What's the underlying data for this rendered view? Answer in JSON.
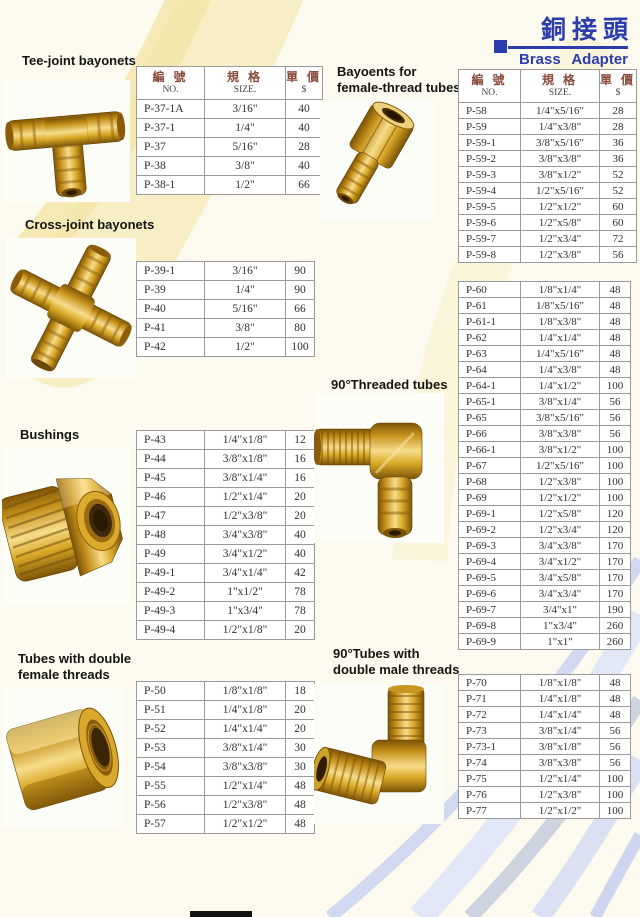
{
  "brand": {
    "title_zh": "銅接頭",
    "title_en": "Brass Adapter"
  },
  "table_header": {
    "no_zh": "編 號",
    "no_en": "NO.",
    "size_zh": "規  格",
    "size_en": "SIZE.",
    "price_zh": "單 價",
    "price_en": "$"
  },
  "colors": {
    "accent_blue": "#2b3dad",
    "table_header_red": "#8a4a3a",
    "brass": "#d9a827",
    "page_cream": "#fcfaee"
  },
  "sections": [
    {
      "name": "tee-joint-bayonets",
      "title_lines": [
        "Tee-joint bayonets"
      ],
      "show_header": true,
      "rows": [
        [
          "P-37-1A",
          "3/16\"",
          "40"
        ],
        [
          "P-37-1",
          "1/4\"",
          "40"
        ],
        [
          "P-37",
          "5/16\"",
          "28"
        ],
        [
          "P-38",
          "3/8\"",
          "40"
        ],
        [
          "P-38-1",
          "1/2\"",
          "66"
        ]
      ]
    },
    {
      "name": "cross-joint-bayonets",
      "title_lines": [
        "Cross-joint bayonets"
      ],
      "show_header": false,
      "rows": [
        [
          "P-39-1",
          "3/16\"",
          "90"
        ],
        [
          "P-39",
          "1/4\"",
          "90"
        ],
        [
          "P-40",
          "5/16\"",
          "66"
        ],
        [
          "P-41",
          "3/8\"",
          "80"
        ],
        [
          "P-42",
          "1/2\"",
          "100"
        ]
      ]
    },
    {
      "name": "bushings",
      "title_lines": [
        "Bushings"
      ],
      "show_header": false,
      "rows": [
        [
          "P-43",
          "1/4\"x1/8\"",
          "12"
        ],
        [
          "P-44",
          "3/8\"x1/8\"",
          "16"
        ],
        [
          "P-45",
          "3/8\"x1/4\"",
          "16"
        ],
        [
          "P-46",
          "1/2\"x1/4\"",
          "20"
        ],
        [
          "P-47",
          "1/2\"x3/8\"",
          "20"
        ],
        [
          "P-48",
          "3/4\"x3/8\"",
          "40"
        ],
        [
          "P-49",
          "3/4\"x1/2\"",
          "40"
        ],
        [
          "P-49-1",
          "3/4\"x1/4\"",
          "42"
        ],
        [
          "P-49-2",
          "1\"x1/2\"",
          "78"
        ],
        [
          "P-49-3",
          "1\"x3/4\"",
          "78"
        ],
        [
          "P-49-4",
          "1/2\"x1/8\"",
          "20"
        ]
      ]
    },
    {
      "name": "tubes-double-female-threads",
      "title_lines": [
        "Tubes with double",
        "female threads"
      ],
      "show_header": false,
      "rows": [
        [
          "P-50",
          "1/8\"x1/8\"",
          "18"
        ],
        [
          "P-51",
          "1/4\"x1/8\"",
          "20"
        ],
        [
          "P-52",
          "1/4\"x1/4\"",
          "20"
        ],
        [
          "P-53",
          "3/8\"x1/4\"",
          "30"
        ],
        [
          "P-54",
          "3/8\"x3/8\"",
          "30"
        ],
        [
          "P-55",
          "1/2\"x1/4\"",
          "48"
        ],
        [
          "P-56",
          "1/2\"x3/8\"",
          "48"
        ],
        [
          "P-57",
          "1/2\"x1/2\"",
          "48"
        ]
      ]
    },
    {
      "name": "bayonets-for-female-thread-tubes",
      "title_lines": [
        "Bayoents for",
        "female-thread tubes"
      ],
      "show_header": true,
      "rows": [
        [
          "P-58",
          "1/4\"x5/16\"",
          "28"
        ],
        [
          "P-59",
          "1/4\"x3/8\"",
          "28"
        ],
        [
          "P-59-1",
          "3/8\"x5/16\"",
          "36"
        ],
        [
          "P-59-2",
          "3/8\"x3/8\"",
          "36"
        ],
        [
          "P-59-3",
          "3/8\"x1/2\"",
          "52"
        ],
        [
          "P-59-4",
          "1/2\"x5/16\"",
          "52"
        ],
        [
          "P-59-5",
          "1/2\"x1/2\"",
          "60"
        ],
        [
          "P-59-6",
          "1/2\"x5/8\"",
          "60"
        ],
        [
          "P-59-7",
          "1/2\"x3/4\"",
          "72"
        ],
        [
          "P-59-8",
          "1/2\"x3/8\"",
          "56"
        ]
      ]
    },
    {
      "name": "threaded-tubes-90deg",
      "title_lines": [
        "90°Threaded tubes"
      ],
      "show_header": false,
      "rows": [
        [
          "P-60",
          "1/8\"x1/4\"",
          "48"
        ],
        [
          "P-61",
          "1/8\"x5/16\"",
          "48"
        ],
        [
          "P-61-1",
          "1/8\"x3/8\"",
          "48"
        ],
        [
          "P-62",
          "1/4\"x1/4\"",
          "48"
        ],
        [
          "P-63",
          "1/4\"x5/16\"",
          "48"
        ],
        [
          "P-64",
          "1/4\"x3/8\"",
          "48"
        ],
        [
          "P-64-1",
          "1/4\"x1/2\"",
          "100"
        ],
        [
          "P-65-1",
          "3/8\"x1/4\"",
          "56"
        ],
        [
          "P-65",
          "3/8\"x5/16\"",
          "56"
        ],
        [
          "P-66",
          "3/8\"x3/8\"",
          "56"
        ],
        [
          "P-66-1",
          "3/8\"x1/2\"",
          "100"
        ],
        [
          "P-67",
          "1/2\"x5/16\"",
          "100"
        ],
        [
          "P-68",
          "1/2\"x3/8\"",
          "100"
        ],
        [
          "P-69",
          "1/2\"x1/2\"",
          "100"
        ],
        [
          "P-69-1",
          "1/2\"x5/8\"",
          "120"
        ],
        [
          "P-69-2",
          "1/2\"x3/4\"",
          "120"
        ],
        [
          "P-69-3",
          "3/4\"x3/8\"",
          "170"
        ],
        [
          "P-69-4",
          "3/4\"x1/2\"",
          "170"
        ],
        [
          "P-69-5",
          "3/4\"x5/8\"",
          "170"
        ],
        [
          "P-69-6",
          "3/4\"x3/4\"",
          "170"
        ],
        [
          "P-69-7",
          "3/4\"x1\"",
          "190"
        ],
        [
          "P-69-8",
          "1\"x3/4\"",
          "260"
        ],
        [
          "P-69-9",
          "1\"x1\"",
          "260"
        ]
      ]
    },
    {
      "name": "tubes-double-male-threads-90deg",
      "title_lines": [
        "90°Tubes with",
        "double male threads"
      ],
      "show_header": false,
      "rows": [
        [
          "P-70",
          "1/8\"x1/8\"",
          "48"
        ],
        [
          "P-71",
          "1/4\"x1/8\"",
          "48"
        ],
        [
          "P-72",
          "1/4\"x1/4\"",
          "48"
        ],
        [
          "P-73",
          "3/8\"x1/4\"",
          "56"
        ],
        [
          "P-73-1",
          "3/8\"x1/8\"",
          "56"
        ],
        [
          "P-74",
          "3/8\"x3/8\"",
          "56"
        ],
        [
          "P-75",
          "1/2\"x1/4\"",
          "100"
        ],
        [
          "P-76",
          "1/2\"x3/8\"",
          "100"
        ],
        [
          "P-77",
          "1/2\"x1/2\"",
          "100"
        ]
      ]
    }
  ]
}
